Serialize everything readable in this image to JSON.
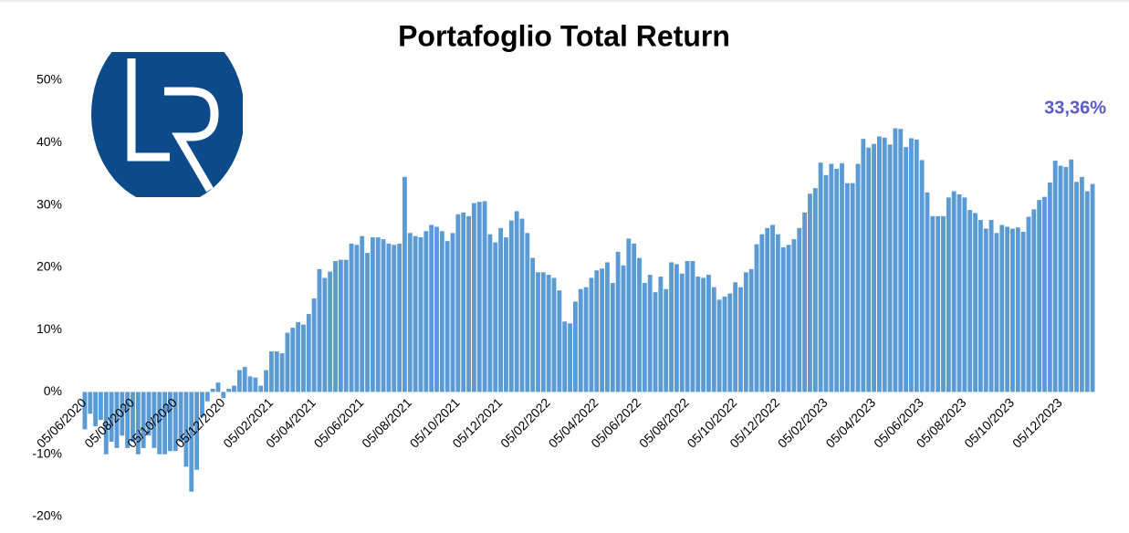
{
  "chart_data": {
    "type": "bar",
    "title": "Portafoglio Total Return",
    "annotation": "33,36%",
    "color": "#5b9bd5",
    "categories": [
      "05/06/2020",
      null,
      null,
      null,
      null,
      null,
      null,
      null,
      null,
      "05/08/2020",
      null,
      null,
      null,
      null,
      null,
      null,
      null,
      "05/10/2020",
      null,
      null,
      null,
      null,
      null,
      null,
      null,
      null,
      "05/12/2020",
      null,
      null,
      null,
      null,
      null,
      null,
      null,
      null,
      "05/02/2021",
      null,
      null,
      null,
      null,
      null,
      null,
      null,
      "05/04/2021",
      null,
      null,
      null,
      null,
      null,
      null,
      null,
      null,
      "05/06/2021",
      null,
      null,
      null,
      null,
      null,
      null,
      null,
      null,
      "05/08/2021",
      null,
      null,
      null,
      null,
      null,
      null,
      null,
      null,
      "05/10/2021",
      null,
      null,
      null,
      null,
      null,
      null,
      null,
      "05/12/2021",
      null,
      null,
      null,
      null,
      null,
      null,
      null,
      null,
      "05/02/2022",
      null,
      null,
      null,
      null,
      null,
      null,
      null,
      null,
      "05/04/2022",
      null,
      null,
      null,
      null,
      null,
      null,
      null,
      "05/06/2022",
      null,
      null,
      null,
      null,
      null,
      null,
      null,
      null,
      "05/08/2022",
      null,
      null,
      null,
      null,
      null,
      null,
      null,
      null,
      "05/10/2022",
      null,
      null,
      null,
      null,
      null,
      null,
      null,
      "05/12/2022",
      null,
      null,
      null,
      null,
      null,
      null,
      null,
      null,
      "05/02/2023",
      null,
      null,
      null,
      null,
      null,
      null,
      null,
      null,
      "05/04/2023",
      null,
      null,
      null,
      null,
      null,
      null,
      null,
      null,
      "05/06/2023",
      null,
      null,
      null,
      null,
      null,
      null,
      null,
      "05/08/2023",
      null,
      null,
      null,
      null,
      null,
      null,
      null,
      null,
      "05/10/2023",
      null,
      null,
      null,
      null,
      null,
      null,
      null,
      null,
      "05/12/2023",
      null,
      null,
      null,
      null,
      null,
      null
    ],
    "values": [
      -6,
      -3.5,
      -5.5,
      -4.5,
      -10,
      -8,
      -9,
      -7,
      -9,
      -8,
      -10,
      -9,
      -7,
      -9,
      -10,
      -10,
      -9.5,
      -9.5,
      -8,
      -12,
      -16,
      -12.5,
      -4,
      -1.5,
      0.5,
      1.5,
      -1,
      0.5,
      1,
      3.5,
      4,
      2.5,
      2.3,
      1,
      3.5,
      6.5,
      6.5,
      6.2,
      9.5,
      10.3,
      11.2,
      10.8,
      12.5,
      15,
      19.7,
      18.3,
      19.3,
      21,
      21.2,
      21.2,
      23.8,
      23.6,
      25,
      22.3,
      24.8,
      24.8,
      24.5,
      23.8,
      23.6,
      23.8,
      34.5,
      25.5,
      25,
      24.8,
      25.8,
      26.8,
      26.5,
      25.8,
      24.2,
      25.5,
      28.5,
      28.8,
      28.2,
      30.3,
      30.5,
      30.6,
      25.3,
      24,
      26.3,
      24.8,
      27.5,
      29,
      27.8,
      25.5,
      21.5,
      19.2,
      19.2,
      18.8,
      18.3,
      16.3,
      11.3,
      11,
      14.5,
      16.5,
      16.8,
      18.3,
      19.5,
      19.8,
      20.8,
      17.5,
      22.5,
      20.3,
      24.6,
      23.8,
      21.5,
      17.5,
      18.8,
      16,
      18.5,
      16.5,
      20.8,
      20.5,
      19,
      21,
      21,
      18.5,
      18.3,
      18.8,
      16.8,
      14.8,
      15.3,
      15.8,
      17.6,
      16.8,
      19.2,
      19.7,
      23.7,
      25.3,
      26.3,
      26.8,
      25.3,
      23.2,
      23.6,
      24.5,
      26.3,
      28.8,
      31.8,
      32.7,
      36.8,
      34.8,
      36.6,
      35.8,
      36.7,
      33.5,
      33.5,
      36.6,
      40.6,
      39.2,
      39.8,
      41,
      40.8,
      39.7,
      42.3,
      42.2,
      39.3,
      40.7,
      40.5,
      37.2,
      32,
      28.2,
      28.2,
      28.2,
      31.2,
      32.2,
      31.7,
      31.2,
      29.2,
      28.7,
      27.6,
      26.2,
      27.6,
      25.5,
      26.8,
      26.5,
      26.2,
      26.4,
      25.7,
      28.1,
      29.3,
      30.8,
      31.3,
      33.6,
      37.1,
      36.3,
      36.1,
      37.3,
      33.7,
      34.5,
      32.2,
      33.36
    ],
    "ylim": [
      -20,
      50
    ],
    "yticks": [
      {
        "value": -20,
        "label": "-20%"
      },
      {
        "value": -10,
        "label": "-10%"
      },
      {
        "value": 0,
        "label": "0%"
      },
      {
        "value": 10,
        "label": "10%"
      },
      {
        "value": 20,
        "label": "20%"
      },
      {
        "value": 30,
        "label": "30%"
      },
      {
        "value": 40,
        "label": "40%"
      },
      {
        "value": 50,
        "label": "50%"
      }
    ],
    "grid": false
  }
}
